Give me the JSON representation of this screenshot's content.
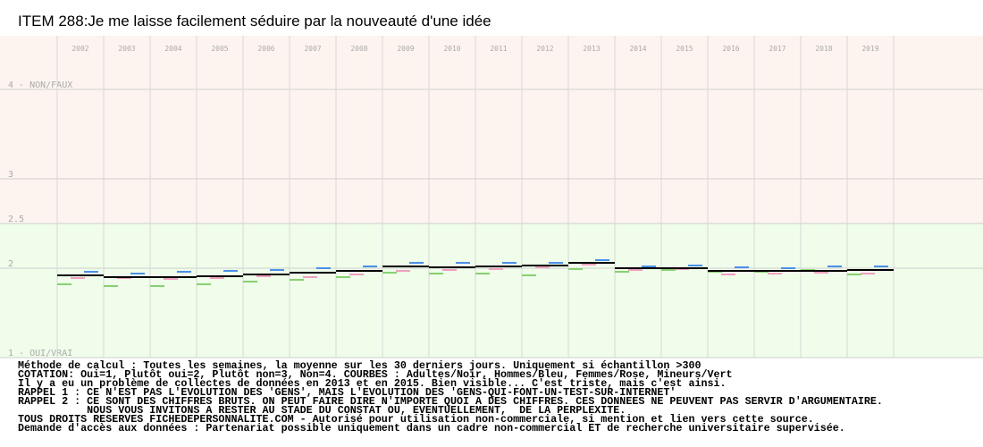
{
  "chart_data": {
    "type": "dash",
    "title": "ITEM 288:Je me laisse facilement séduire par la nouveauté d'une idée",
    "categories": [
      "2002",
      "2003",
      "2004",
      "2005",
      "2006",
      "2007",
      "2008",
      "2009",
      "2010",
      "2011",
      "2012",
      "2013",
      "2014",
      "2015",
      "2016",
      "2017",
      "2018",
      "2019"
    ],
    "series": [
      {
        "name": "Mineurs",
        "color": "#88d070",
        "values": [
          1.82,
          1.8,
          1.8,
          1.82,
          1.85,
          1.87,
          1.9,
          1.95,
          1.94,
          1.94,
          1.92,
          1.99,
          1.96,
          1.98,
          1.96,
          1.96,
          1.98,
          1.93
        ]
      },
      {
        "name": "Femmes",
        "color": "#f0a0c0",
        "values": [
          1.89,
          1.89,
          1.88,
          1.89,
          1.91,
          1.9,
          1.93,
          1.97,
          1.98,
          1.99,
          2.01,
          2.04,
          1.98,
          1.99,
          1.93,
          1.94,
          1.95,
          1.94
        ]
      },
      {
        "name": "Hommes",
        "color": "#4a90e8",
        "values": [
          1.96,
          1.94,
          1.96,
          1.97,
          1.98,
          2.0,
          2.02,
          2.06,
          2.06,
          2.06,
          2.06,
          2.09,
          2.02,
          2.03,
          2.01,
          2.0,
          2.02,
          2.02
        ]
      },
      {
        "name": "Adultes",
        "color": "#000000",
        "values": [
          1.92,
          1.9,
          1.9,
          1.91,
          1.93,
          1.95,
          1.97,
          2.02,
          2.01,
          2.02,
          2.03,
          2.06,
          2.0,
          2.0,
          1.97,
          1.97,
          1.97,
          1.98
        ]
      }
    ],
    "ylim": [
      1,
      4
    ],
    "yticks": [
      {
        "value": 4,
        "label": "4 - NON/FAUX"
      },
      3,
      2.5,
      2,
      {
        "value": 1,
        "label": "1 - OUI/VRAI"
      }
    ],
    "threshold": 2.5,
    "upper_color": "#fdf4ef",
    "lower_color": "#effdea",
    "grid": true,
    "notes": [
      "Méthode de calcul : Toutes les semaines, la moyenne sur les 30 derniers jours. Uniquement si échantillon >300",
      "COTATION: Oui=1, Plutôt oui=2, Plutôt non=3, Non=4. COURBES : Adultes/Noir, Hommes/Bleu, Femmes/Rose, Mineurs/Vert",
      "Il y a eu un problème de collectes de données en 2013 et en 2015. Bien visible... C'est triste, mais c'est ainsi.",
      "RAPPEL 1 : CE N'EST PAS L'EVOLUTION DES 'GENS', MAIS L'EVOLUTION DES 'GENS-QUI-FONT-UN-TEST-SUR-INTERNET'",
      "RAPPEL 2 : CE SONT DES CHIFFRES BRUTS. ON PEUT FAIRE DIRE N'IMPORTE QUOI A DES CHIFFRES. CES DONNEES NE PEUVENT PAS SERVIR D'ARGUMENTAIRE.",
      "           NOUS VOUS INVITONS A RESTER AU STADE DU CONSTAT OU, EVENTUELLEMENT,  DE LA PERPLEXITE.",
      "TOUS DROITS RESERVES FICHEDEPERSONNALITE.COM - Autorisé pour utilisation non-commerciale, si mention et lien vers cette source.",
      "Demande d'accès aux données : Partenariat possible uniquement dans un cadre non-commercial ET de recherche universitaire supervisée."
    ]
  }
}
